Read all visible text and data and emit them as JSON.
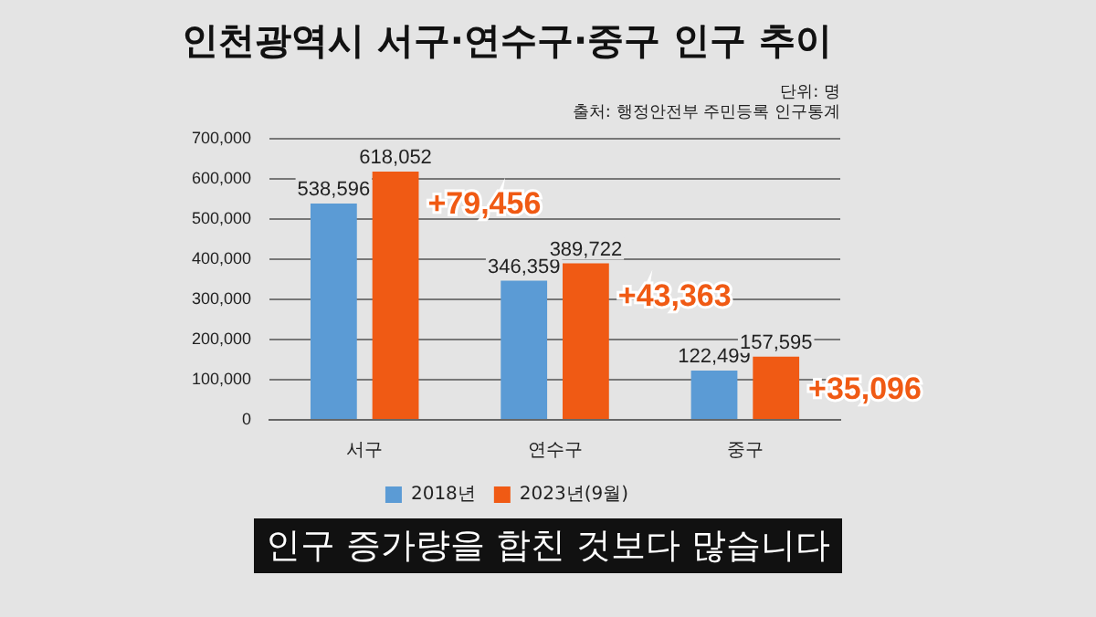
{
  "chart_data": {
    "type": "bar",
    "title": "인천광역시 서구·연수구·중구 인구 추이",
    "categories": [
      "서구",
      "연수구",
      "중구"
    ],
    "series": [
      {
        "name": "2018년",
        "color": "#5b9bd5",
        "values": [
          538596,
          346359,
          122499
        ],
        "value_labels": [
          "538,596",
          "346,359",
          "122,499"
        ]
      },
      {
        "name": "2023년(9월)",
        "color": "#f05a14",
        "values": [
          618052,
          389722,
          157595
        ],
        "value_labels": [
          "618,052",
          "389,722",
          "157,595"
        ]
      }
    ],
    "ylim": [
      0,
      700000
    ],
    "yticks": [
      {
        "value": 0,
        "label": "0"
      },
      {
        "value": 100000,
        "label": "100,000"
      },
      {
        "value": 200000,
        "label": "200,000"
      },
      {
        "value": 300000,
        "label": "300,000"
      },
      {
        "value": 400000,
        "label": "400,000"
      },
      {
        "value": 500000,
        "label": "500,000"
      },
      {
        "value": 600000,
        "label": "600,000"
      },
      {
        "value": 700000,
        "label": "700,000"
      }
    ],
    "grid": "y",
    "legend": "bottom",
    "annotations": [
      {
        "text": "+79,456",
        "x": "서구",
        "y": 618052
      },
      {
        "text": "+43,363",
        "x": "연수구",
        "y": 389722
      },
      {
        "text": "+35,096",
        "x": "중구",
        "y": 157595
      },
      "단위: 명",
      "출처: 행정안전부 주민등록 인구통계",
      "인구 증가량을 합친 것보다 많습니다"
    ]
  }
}
